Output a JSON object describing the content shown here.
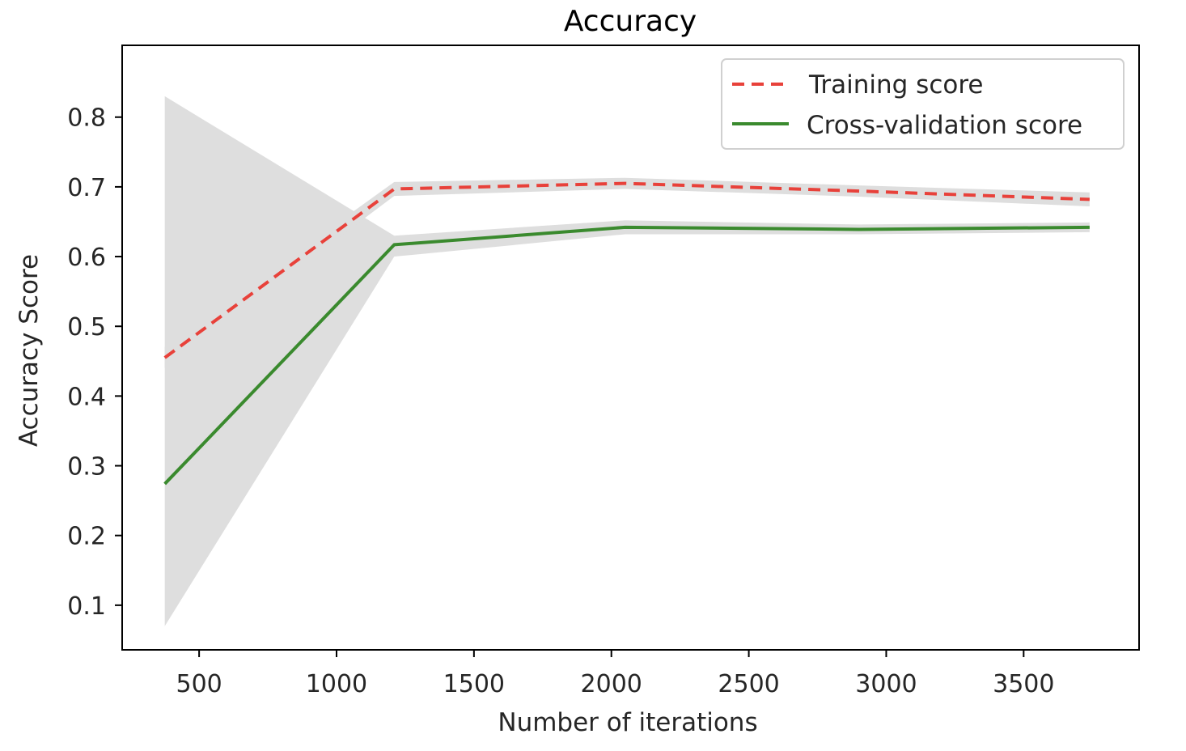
{
  "chart_data": {
    "type": "line",
    "title": "Accuracy",
    "xlabel": "Number of iterations",
    "ylabel": "Accuracy Score",
    "xlim": [
      220,
      3920
    ],
    "ylim": [
      0.036,
      0.903
    ],
    "xticks": [
      500,
      1000,
      1500,
      2000,
      2500,
      3000,
      3500
    ],
    "xtick_labels": [
      "500",
      "1000",
      "1500",
      "2000",
      "2500",
      "3000",
      "3500"
    ],
    "yticks": [
      0.1,
      0.2,
      0.3,
      0.4,
      0.5,
      0.6,
      0.7,
      0.8
    ],
    "ytick_labels": [
      "0.1",
      "0.2",
      "0.3",
      "0.4",
      "0.5",
      "0.6",
      "0.7",
      "0.8"
    ],
    "grid": false,
    "legend_position": "top-right",
    "x": [
      375,
      1210,
      2050,
      2900,
      3740
    ],
    "series": [
      {
        "name": "Training score",
        "values": [
          0.455,
          0.697,
          0.705,
          0.694,
          0.682
        ],
        "color": "#e8413a",
        "style": "dashed",
        "band_lower": [
          0.44,
          0.687,
          0.697,
          0.686,
          0.672
        ],
        "band_upper": [
          0.47,
          0.707,
          0.713,
          0.702,
          0.692
        ]
      },
      {
        "name": "Cross-validation score",
        "values": [
          0.274,
          0.617,
          0.642,
          0.639,
          0.642
        ],
        "color": "#3a8a2e",
        "style": "solid",
        "band_lower": [
          0.07,
          0.6,
          0.632,
          0.632,
          0.635
        ],
        "band_upper": [
          0.83,
          0.63,
          0.652,
          0.646,
          0.649
        ]
      }
    ],
    "band_color": "#dedede"
  }
}
